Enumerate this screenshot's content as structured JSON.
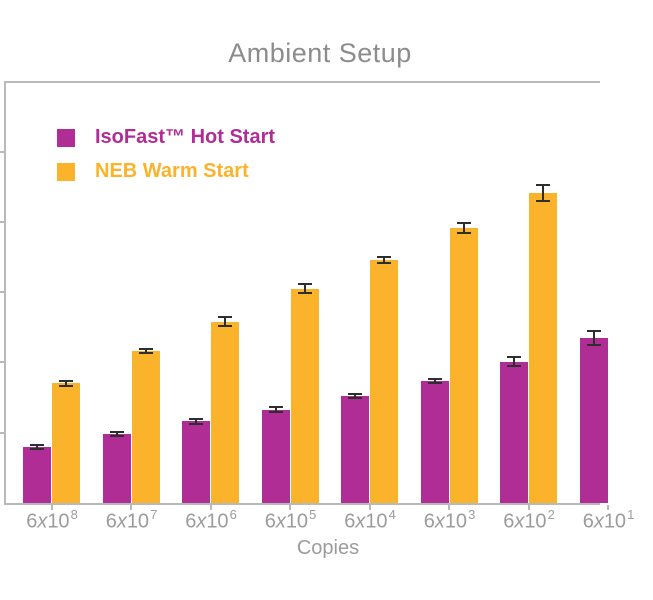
{
  "title": "Ambient Setup",
  "legend": {
    "items": [
      {
        "id": "isofast",
        "label": "IsoFast™ Hot Start",
        "color": "#B12D96"
      },
      {
        "id": "neb",
        "label": "NEB Warm Start",
        "color": "#FCB32C"
      }
    ]
  },
  "x_axis": {
    "label": "Copies",
    "tick_prefix": "6",
    "tick_times": "x",
    "tick_power_base": "10",
    "tick_exponents": [
      "8",
      "7",
      "6",
      "5",
      "4",
      "3",
      "2",
      "1"
    ],
    "last_tick_partially_cropped": true
  },
  "y_axis": {
    "tick_count": 5,
    "labels_visible": false,
    "note": "Y-axis tick labels and axis title are cropped out of the visible image; only tick marks show at the left edge."
  },
  "chart_data": {
    "type": "bar",
    "title": "Ambient Setup",
    "xlabel": "Copies",
    "ylabel": "",
    "categories": [
      "6x10^8",
      "6x10^7",
      "6x10^6",
      "6x10^5",
      "6x10^4",
      "6x10^3",
      "6x10^2",
      "6x10^1"
    ],
    "series": [
      {
        "name": "IsoFast™ Hot Start",
        "color": "#B12D96",
        "values": [
          0.8,
          0.98,
          1.16,
          1.33,
          1.52,
          1.73,
          2.01,
          2.35
        ],
        "errors": [
          0.03,
          0.03,
          0.03,
          0.03,
          0.03,
          0.03,
          0.06,
          0.1
        ]
      },
      {
        "name": "NEB Warm Start",
        "color": "#FCB32C",
        "values": [
          1.7,
          2.16,
          2.58,
          3.05,
          3.46,
          3.91,
          4.41,
          null
        ],
        "errors": [
          0.04,
          0.03,
          0.06,
          0.06,
          0.04,
          0.07,
          0.11,
          null
        ]
      }
    ],
    "ylim": [
      0,
      6
    ],
    "units_note": "Y tick values not visible; bar values expressed in gridline units (1 unit = one gridline interval, 6 units = plot top).",
    "grid": false,
    "legend_position": "top-left inside plot",
    "error_bars": true,
    "last_group_partially_cropped": true
  },
  "colors": {
    "bar_magenta": "#B12D96",
    "bar_amber": "#FCB32C",
    "error_bar": "#2E2E2E",
    "axis_line": "#B9B9B9",
    "title_text": "#8C8C8C",
    "axis_text": "#9C9C9C"
  }
}
